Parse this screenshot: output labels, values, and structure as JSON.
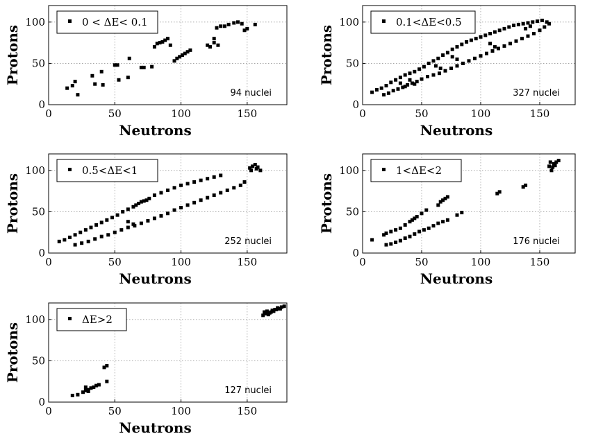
{
  "chart_data": [
    {
      "type": "scatter",
      "legend": "0 < ΔE< 0.1",
      "annotation": "94 nuclei",
      "xlabel": "Neutrons",
      "ylabel": "Protons",
      "xlim": [
        0,
        180
      ],
      "ylim": [
        0,
        120
      ],
      "xticks": [
        0,
        50,
        100,
        150
      ],
      "yticks": [
        0,
        50,
        100
      ],
      "grid": true,
      "legend_position": "top-left",
      "points": [
        [
          14,
          20
        ],
        [
          18,
          23
        ],
        [
          20,
          28
        ],
        [
          22,
          12
        ],
        [
          33,
          35
        ],
        [
          35,
          25
        ],
        [
          40,
          40
        ],
        [
          41,
          24
        ],
        [
          50,
          48
        ],
        [
          52,
          48
        ],
        [
          53,
          30
        ],
        [
          60,
          33
        ],
        [
          61,
          56
        ],
        [
          70,
          45
        ],
        [
          72,
          45
        ],
        [
          78,
          46
        ],
        [
          80,
          70
        ],
        [
          82,
          74
        ],
        [
          84,
          75
        ],
        [
          86,
          76
        ],
        [
          88,
          78
        ],
        [
          90,
          80
        ],
        [
          92,
          72
        ],
        [
          95,
          53
        ],
        [
          97,
          56
        ],
        [
          99,
          58
        ],
        [
          101,
          60
        ],
        [
          103,
          62
        ],
        [
          105,
          64
        ],
        [
          107,
          66
        ],
        [
          120,
          72
        ],
        [
          122,
          70
        ],
        [
          125,
          80
        ],
        [
          127,
          93
        ],
        [
          130,
          95
        ],
        [
          133,
          95
        ],
        [
          136,
          97
        ],
        [
          140,
          99
        ],
        [
          143,
          100
        ],
        [
          146,
          98
        ],
        [
          148,
          90
        ],
        [
          150,
          92
        ],
        [
          156,
          97
        ],
        [
          125,
          75
        ],
        [
          128,
          72
        ]
      ]
    },
    {
      "type": "scatter",
      "legend": "0.1<ΔE<0.5",
      "annotation": "327 nuclei",
      "xlabel": "Neutrons",
      "ylabel": "Protons",
      "xlim": [
        0,
        180
      ],
      "ylim": [
        0,
        120
      ],
      "xticks": [
        0,
        50,
        100,
        150
      ],
      "yticks": [
        0,
        50,
        100
      ],
      "grid": true,
      "legend_position": "top-left",
      "points": [
        [
          8,
          15
        ],
        [
          12,
          18
        ],
        [
          16,
          20
        ],
        [
          20,
          23
        ],
        [
          24,
          27
        ],
        [
          28,
          30
        ],
        [
          32,
          33
        ],
        [
          36,
          36
        ],
        [
          40,
          38
        ],
        [
          44,
          40
        ],
        [
          48,
          43
        ],
        [
          52,
          46
        ],
        [
          56,
          50
        ],
        [
          60,
          53
        ],
        [
          64,
          56
        ],
        [
          68,
          60
        ],
        [
          72,
          63
        ],
        [
          76,
          67
        ],
        [
          80,
          70
        ],
        [
          84,
          73
        ],
        [
          88,
          76
        ],
        [
          92,
          78
        ],
        [
          96,
          80
        ],
        [
          100,
          82
        ],
        [
          104,
          84
        ],
        [
          108,
          86
        ],
        [
          112,
          88
        ],
        [
          116,
          90
        ],
        [
          120,
          92
        ],
        [
          124,
          94
        ],
        [
          128,
          96
        ],
        [
          132,
          97
        ],
        [
          136,
          98
        ],
        [
          140,
          99
        ],
        [
          144,
          100
        ],
        [
          148,
          101
        ],
        [
          152,
          102
        ],
        [
          156,
          100
        ],
        [
          18,
          12
        ],
        [
          22,
          14
        ],
        [
          26,
          17
        ],
        [
          30,
          19
        ],
        [
          34,
          21
        ],
        [
          38,
          24
        ],
        [
          42,
          26
        ],
        [
          46,
          28
        ],
        [
          50,
          31
        ],
        [
          55,
          34
        ],
        [
          60,
          36
        ],
        [
          65,
          38
        ],
        [
          70,
          41
        ],
        [
          75,
          44
        ],
        [
          80,
          47
        ],
        [
          85,
          50
        ],
        [
          90,
          53
        ],
        [
          95,
          56
        ],
        [
          100,
          59
        ],
        [
          105,
          62
        ],
        [
          110,
          65
        ],
        [
          115,
          68
        ],
        [
          120,
          71
        ],
        [
          125,
          74
        ],
        [
          130,
          77
        ],
        [
          135,
          80
        ],
        [
          140,
          83
        ],
        [
          145,
          86
        ],
        [
          150,
          90
        ],
        [
          154,
          94
        ],
        [
          158,
          98
        ],
        [
          32,
          26
        ],
        [
          36,
          22
        ],
        [
          40,
          30
        ],
        [
          44,
          25
        ],
        [
          62,
          47
        ],
        [
          66,
          44
        ],
        [
          76,
          58
        ],
        [
          80,
          55
        ],
        [
          108,
          74
        ],
        [
          112,
          70
        ],
        [
          138,
          92
        ],
        [
          142,
          95
        ]
      ]
    },
    {
      "type": "scatter",
      "legend": "0.5<ΔE<1",
      "annotation": "252 nuclei",
      "xlabel": "Neutrons",
      "ylabel": "Protons",
      "xlim": [
        0,
        180
      ],
      "ylim": [
        0,
        120
      ],
      "xticks": [
        0,
        50,
        100,
        150
      ],
      "yticks": [
        0,
        50,
        100
      ],
      "grid": true,
      "legend_position": "top-left",
      "points": [
        [
          8,
          14
        ],
        [
          12,
          16
        ],
        [
          16,
          19
        ],
        [
          20,
          22
        ],
        [
          24,
          25
        ],
        [
          28,
          28
        ],
        [
          32,
          31
        ],
        [
          36,
          34
        ],
        [
          40,
          37
        ],
        [
          44,
          40
        ],
        [
          48,
          43
        ],
        [
          52,
          46
        ],
        [
          56,
          50
        ],
        [
          60,
          53
        ],
        [
          64,
          56
        ],
        [
          66,
          58
        ],
        [
          68,
          60
        ],
        [
          70,
          62
        ],
        [
          72,
          63
        ],
        [
          74,
          64
        ],
        [
          76,
          66
        ],
        [
          80,
          70
        ],
        [
          85,
          73
        ],
        [
          90,
          76
        ],
        [
          95,
          79
        ],
        [
          100,
          82
        ],
        [
          105,
          84
        ],
        [
          110,
          86
        ],
        [
          115,
          88
        ],
        [
          120,
          90
        ],
        [
          125,
          92
        ],
        [
          130,
          94
        ],
        [
          20,
          10
        ],
        [
          25,
          12
        ],
        [
          30,
          14
        ],
        [
          35,
          17
        ],
        [
          40,
          20
        ],
        [
          45,
          22
        ],
        [
          50,
          25
        ],
        [
          55,
          28
        ],
        [
          60,
          31
        ],
        [
          65,
          33
        ],
        [
          70,
          36
        ],
        [
          75,
          39
        ],
        [
          80,
          42
        ],
        [
          85,
          45
        ],
        [
          90,
          48
        ],
        [
          95,
          52
        ],
        [
          100,
          55
        ],
        [
          105,
          58
        ],
        [
          110,
          61
        ],
        [
          115,
          64
        ],
        [
          120,
          67
        ],
        [
          125,
          70
        ],
        [
          130,
          73
        ],
        [
          135,
          76
        ],
        [
          140,
          79
        ],
        [
          145,
          82
        ],
        [
          148,
          86
        ],
        [
          152,
          103
        ],
        [
          154,
          105
        ],
        [
          156,
          107
        ],
        [
          158,
          104
        ],
        [
          160,
          100
        ],
        [
          153,
          100
        ],
        [
          157,
          102
        ],
        [
          60,
          38
        ],
        [
          64,
          35
        ]
      ]
    },
    {
      "type": "scatter",
      "legend": "1<ΔE<2",
      "annotation": "176 nuclei",
      "xlabel": "Neutrons",
      "ylabel": "Protons",
      "xlim": [
        0,
        180
      ],
      "ylim": [
        0,
        120
      ],
      "xticks": [
        0,
        50,
        100,
        150
      ],
      "yticks": [
        0,
        50,
        100
      ],
      "grid": true,
      "legend_position": "top-left",
      "points": [
        [
          8,
          16
        ],
        [
          18,
          22
        ],
        [
          20,
          24
        ],
        [
          24,
          26
        ],
        [
          28,
          28
        ],
        [
          32,
          30
        ],
        [
          36,
          34
        ],
        [
          40,
          38
        ],
        [
          42,
          40
        ],
        [
          44,
          42
        ],
        [
          46,
          44
        ],
        [
          50,
          48
        ],
        [
          54,
          52
        ],
        [
          64,
          58
        ],
        [
          66,
          62
        ],
        [
          68,
          64
        ],
        [
          70,
          66
        ],
        [
          72,
          68
        ],
        [
          20,
          10
        ],
        [
          24,
          11
        ],
        [
          28,
          13
        ],
        [
          32,
          15
        ],
        [
          36,
          18
        ],
        [
          40,
          20
        ],
        [
          44,
          23
        ],
        [
          48,
          26
        ],
        [
          52,
          28
        ],
        [
          56,
          30
        ],
        [
          60,
          33
        ],
        [
          64,
          36
        ],
        [
          68,
          38
        ],
        [
          72,
          40
        ],
        [
          80,
          46
        ],
        [
          84,
          49
        ],
        [
          114,
          72
        ],
        [
          116,
          74
        ],
        [
          136,
          80
        ],
        [
          138,
          82
        ],
        [
          158,
          105
        ],
        [
          160,
          100
        ],
        [
          162,
          108
        ],
        [
          164,
          110
        ],
        [
          166,
          112
        ],
        [
          159,
          110
        ],
        [
          161,
          104
        ],
        [
          163,
          106
        ]
      ]
    },
    {
      "type": "scatter",
      "legend": "ΔE>2",
      "annotation": "127 nuclei",
      "xlabel": "Neutrons",
      "ylabel": "Protons",
      "xlim": [
        0,
        180
      ],
      "ylim": [
        0,
        120
      ],
      "xticks": [
        0,
        50,
        100,
        150
      ],
      "yticks": [
        0,
        50,
        100
      ],
      "grid": true,
      "legend_position": "top-left",
      "points": [
        [
          18,
          8
        ],
        [
          22,
          9
        ],
        [
          26,
          12
        ],
        [
          28,
          14
        ],
        [
          30,
          15
        ],
        [
          32,
          17
        ],
        [
          34,
          18
        ],
        [
          36,
          20
        ],
        [
          38,
          21
        ],
        [
          42,
          42
        ],
        [
          44,
          44
        ],
        [
          44,
          25
        ],
        [
          28,
          18
        ],
        [
          30,
          13
        ],
        [
          162,
          105
        ],
        [
          164,
          107
        ],
        [
          166,
          106
        ],
        [
          168,
          109
        ],
        [
          170,
          110
        ],
        [
          172,
          112
        ],
        [
          174,
          113
        ],
        [
          176,
          115
        ],
        [
          178,
          116
        ],
        [
          163,
          109
        ],
        [
          165,
          110
        ],
        [
          167,
          108
        ],
        [
          169,
          111
        ],
        [
          171,
          112
        ],
        [
          173,
          114
        ],
        [
          175,
          113
        ]
      ]
    }
  ]
}
